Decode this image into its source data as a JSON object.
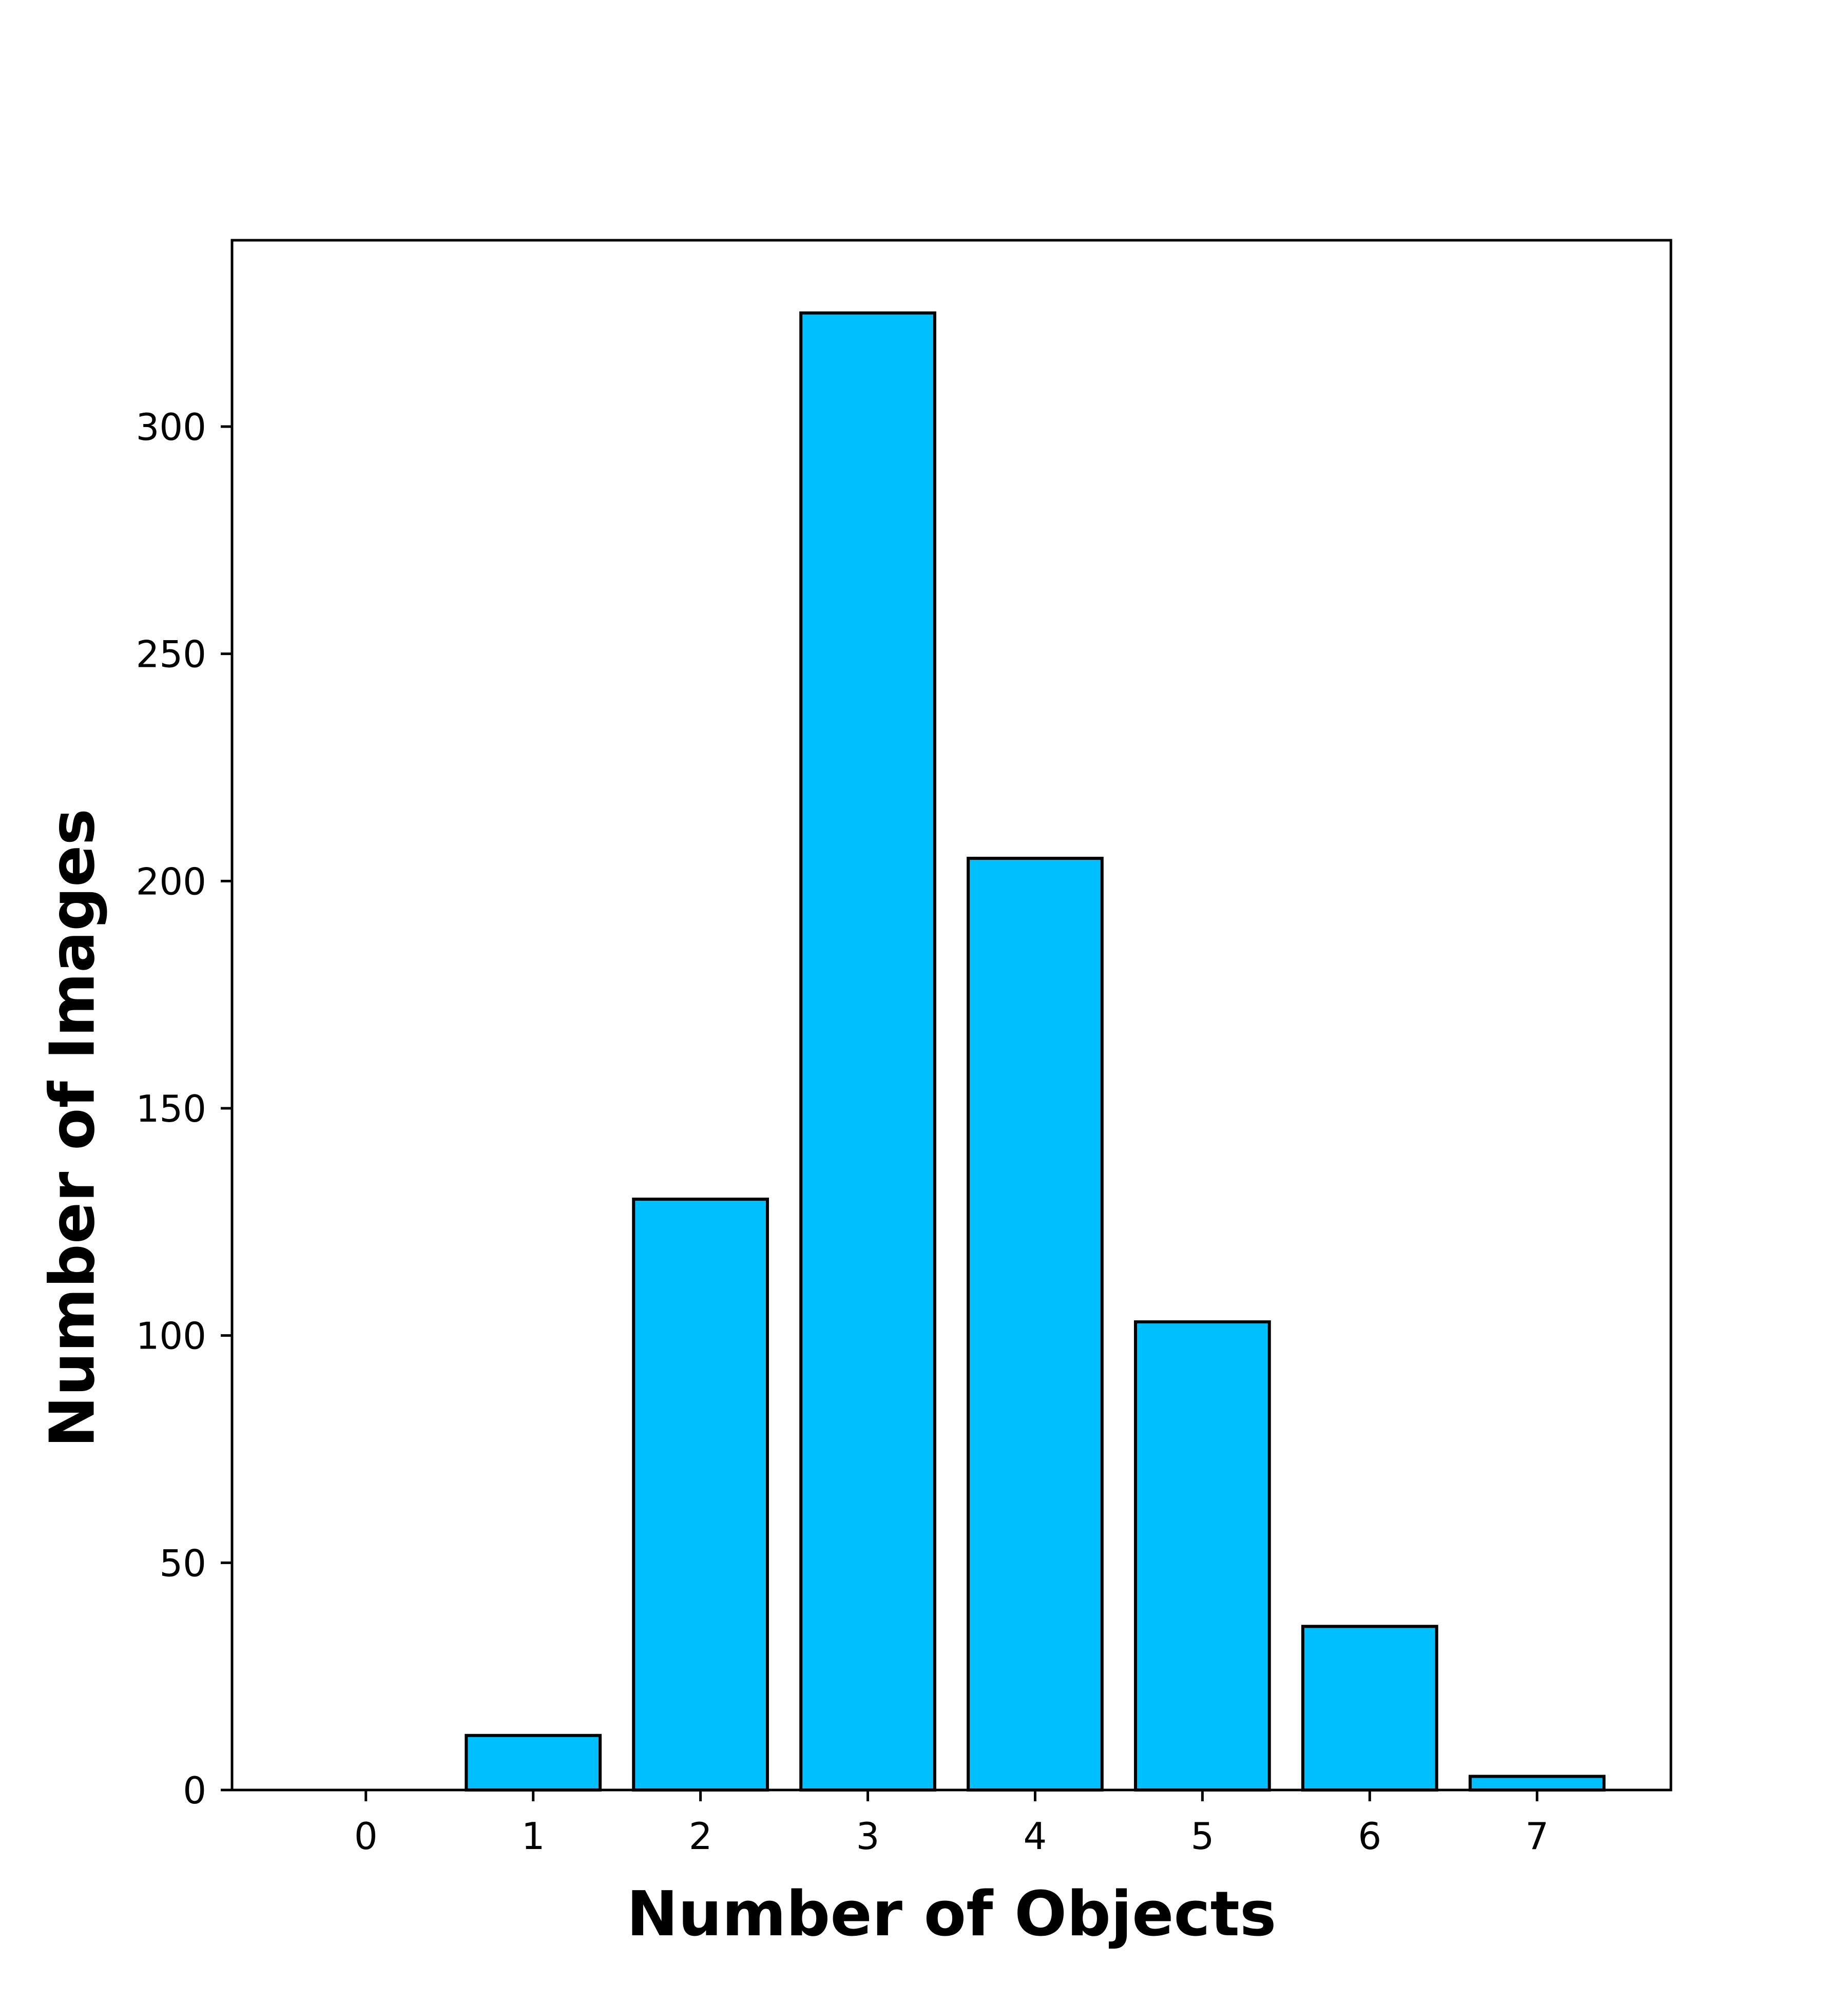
{
  "colors": {
    "bar_fill": "#00BFFF",
    "bar_edge": "#000000",
    "axis": "#000000",
    "background": "#FFFFFF"
  },
  "chart_data": {
    "type": "bar",
    "categories": [
      "0",
      "1",
      "2",
      "3",
      "4",
      "5",
      "6",
      "7"
    ],
    "values": [
      0,
      12,
      130,
      325,
      205,
      103,
      36,
      3
    ],
    "xlabel": "Number of Objects",
    "ylabel": "Number of Images",
    "yticks": [
      0,
      50,
      100,
      150,
      200,
      250,
      300
    ],
    "ylim": [
      0,
      341
    ],
    "xlim": [
      -0.8,
      7.8
    ],
    "grid": false,
    "legend": "none"
  }
}
